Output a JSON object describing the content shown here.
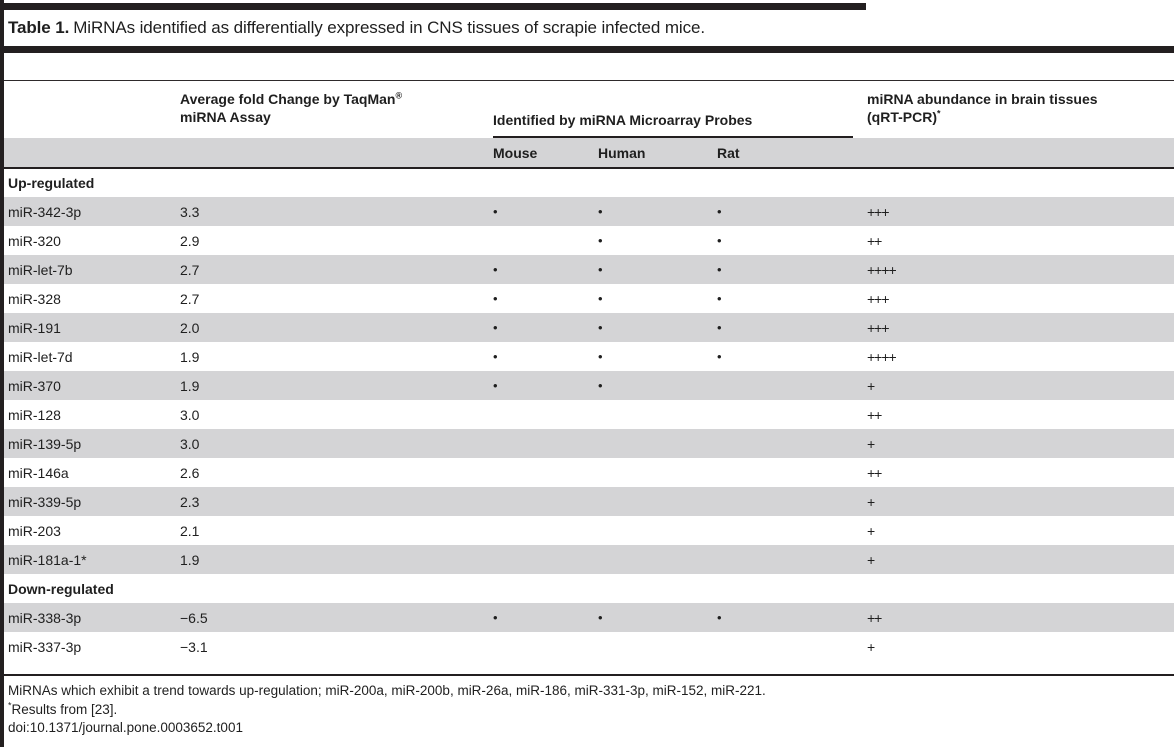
{
  "colors": {
    "rule": "#231f20",
    "stripe": "#d4d4d6"
  },
  "title": {
    "label": "Table 1.",
    "text": "MiRNAs identified as differentially expressed in CNS tissues of scrapie infected mice."
  },
  "table": {
    "headers": {
      "fold_line1": "Average fold Change by TaqMan",
      "fold_sup": "®",
      "fold_line2": "miRNA Assay",
      "group": "Identified by miRNA Microarray Probes",
      "abundance_line1": "miRNA abundance in brain tissues",
      "abundance_line2": "(qRT-PCR)",
      "abundance_sup": "*",
      "mouse": "Mouse",
      "human": "Human",
      "rat": "Rat"
    },
    "rows": [
      {
        "type": "section",
        "name": "Up-regulated"
      },
      {
        "type": "data",
        "name": "miR-342-3p",
        "fold": "3.3",
        "mouse": "•",
        "human": "•",
        "rat": "•",
        "abundance": "+++"
      },
      {
        "type": "data",
        "name": "miR-320",
        "fold": "2.9",
        "mouse": "",
        "human": "•",
        "rat": "•",
        "abundance": "++"
      },
      {
        "type": "data",
        "name": "miR-let-7b",
        "fold": "2.7",
        "mouse": "•",
        "human": "•",
        "rat": "•",
        "abundance": "++++"
      },
      {
        "type": "data",
        "name": "miR-328",
        "fold": "2.7",
        "mouse": "•",
        "human": "•",
        "rat": "•",
        "abundance": "+++"
      },
      {
        "type": "data",
        "name": "miR-191",
        "fold": "2.0",
        "mouse": "•",
        "human": "•",
        "rat": "•",
        "abundance": "+++"
      },
      {
        "type": "data",
        "name": "miR-let-7d",
        "fold": "1.9",
        "mouse": "•",
        "human": "•",
        "rat": "•",
        "abundance": "++++"
      },
      {
        "type": "data",
        "name": "miR-370",
        "fold": "1.9",
        "mouse": "•",
        "human": "•",
        "rat": "",
        "abundance": "+"
      },
      {
        "type": "data",
        "name": "miR-128",
        "fold": "3.0",
        "mouse": "",
        "human": "",
        "rat": "",
        "abundance": "++"
      },
      {
        "type": "data",
        "name": "miR-139-5p",
        "fold": "3.0",
        "mouse": "",
        "human": "",
        "rat": "",
        "abundance": "+"
      },
      {
        "type": "data",
        "name": "miR-146a",
        "fold": "2.6",
        "mouse": "",
        "human": "",
        "rat": "",
        "abundance": "++"
      },
      {
        "type": "data",
        "name": "miR-339-5p",
        "fold": "2.3",
        "mouse": "",
        "human": "",
        "rat": "",
        "abundance": "+"
      },
      {
        "type": "data",
        "name": "miR-203",
        "fold": "2.1",
        "mouse": "",
        "human": "",
        "rat": "",
        "abundance": "+"
      },
      {
        "type": "data",
        "name": "miR-181a-1*",
        "fold": "1.9",
        "mouse": "",
        "human": "",
        "rat": "",
        "abundance": "+"
      },
      {
        "type": "section",
        "name": "Down-regulated"
      },
      {
        "type": "data",
        "name": "miR-338-3p",
        "fold": "−6.5",
        "mouse": "•",
        "human": "•",
        "rat": "•",
        "abundance": "++"
      },
      {
        "type": "data",
        "name": "miR-337-3p",
        "fold": "−3.1",
        "mouse": "",
        "human": "",
        "rat": "",
        "abundance": "+"
      }
    ]
  },
  "footnotes": {
    "line1": "MiRNAs which exhibit a trend towards up-regulation; miR-200a, miR-200b, miR-26a, miR-186, miR-331-3p, miR-152, miR-221.",
    "line2_sup": "*",
    "line2": "Results from [23].",
    "doi": "doi:10.1371/journal.pone.0003652.t001"
  }
}
